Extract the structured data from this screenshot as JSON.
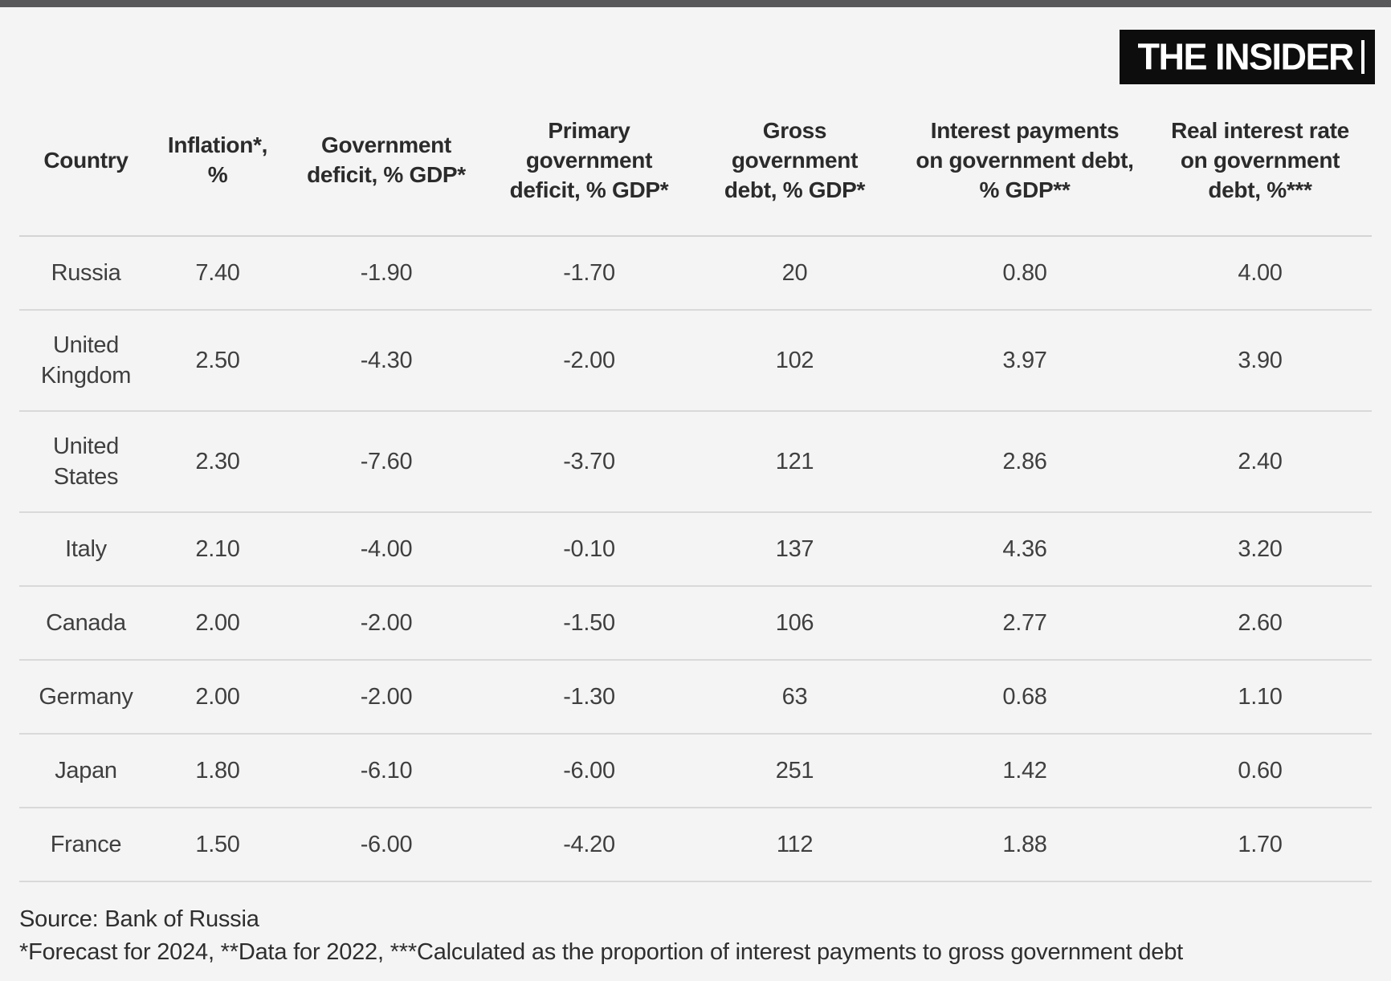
{
  "brand": {
    "logo_text": "THE INSIDER"
  },
  "table": {
    "columns": [
      {
        "label": "Country"
      },
      {
        "label": "Inflation*,\n%"
      },
      {
        "label": "Government\ndeficit, % GDP*"
      },
      {
        "label": "Primary\ngovernment\ndeficit, % GDP*"
      },
      {
        "label": "Gross\ngovernment\ndebt, % GDP*"
      },
      {
        "label": "Interest payments\non government debt,\n% GDP**"
      },
      {
        "label": "Real interest rate\non government\ndebt, %***"
      }
    ],
    "rows": [
      [
        "Russia",
        "7.40",
        "-1.90",
        "-1.70",
        "20",
        "0.80",
        "4.00"
      ],
      [
        "United\nKingdom",
        "2.50",
        "-4.30",
        "-2.00",
        "102",
        "3.97",
        "3.90"
      ],
      [
        "United\nStates",
        "2.30",
        "-7.60",
        "-3.70",
        "121",
        "2.86",
        "2.40"
      ],
      [
        "Italy",
        "2.10",
        "-4.00",
        "-0.10",
        "137",
        "4.36",
        "3.20"
      ],
      [
        "Canada",
        "2.00",
        "-2.00",
        "-1.50",
        "106",
        "2.77",
        "2.60"
      ],
      [
        "Germany",
        "2.00",
        "-2.00",
        "-1.30",
        "63",
        "0.68",
        "1.10"
      ],
      [
        "Japan",
        "1.80",
        "-6.10",
        "-6.00",
        "251",
        "1.42",
        "0.60"
      ],
      [
        "France",
        "1.50",
        "-6.00",
        "-4.20",
        "112",
        "1.88",
        "1.70"
      ]
    ]
  },
  "footer": {
    "source": "Source: Bank of Russia",
    "notes": "*Forecast for 2024, **Data for 2022, ***Calculated as the proportion of interest payments to gross government debt"
  },
  "colors": {
    "background": "#f4f4f4",
    "topbar": "#58585a",
    "logo_background": "#0d0d0d",
    "logo_text": "#ffffff",
    "header_text": "#2b2b2b",
    "cell_text": "#3f3f3f",
    "separator": "#d9d9d9"
  },
  "chart_data": {
    "type": "table",
    "title": "",
    "columns": [
      "Country",
      "Inflation*, %",
      "Government deficit, % GDP*",
      "Primary government deficit, % GDP*",
      "Gross government debt, % GDP*",
      "Interest payments on government debt, % GDP**",
      "Real interest rate on government debt, %***"
    ],
    "rows": [
      [
        "Russia",
        7.4,
        -1.9,
        -1.7,
        20,
        0.8,
        4.0
      ],
      [
        "United Kingdom",
        2.5,
        -4.3,
        -2.0,
        102,
        3.97,
        3.9
      ],
      [
        "United States",
        2.3,
        -7.6,
        -3.7,
        121,
        2.86,
        2.4
      ],
      [
        "Italy",
        2.1,
        -4.0,
        -0.1,
        137,
        4.36,
        3.2
      ],
      [
        "Canada",
        2.0,
        -2.0,
        -1.5,
        106,
        2.77,
        2.6
      ],
      [
        "Germany",
        2.0,
        -2.0,
        -1.3,
        63,
        0.68,
        1.1
      ],
      [
        "Japan",
        1.8,
        -6.1,
        -6.0,
        251,
        1.42,
        0.6
      ],
      [
        "France",
        1.5,
        -6.0,
        -4.2,
        112,
        1.88,
        1.7
      ]
    ],
    "source": "Bank of Russia",
    "notes": "*Forecast for 2024, **Data for 2022, ***Calculated as the proportion of interest payments to gross government debt"
  }
}
